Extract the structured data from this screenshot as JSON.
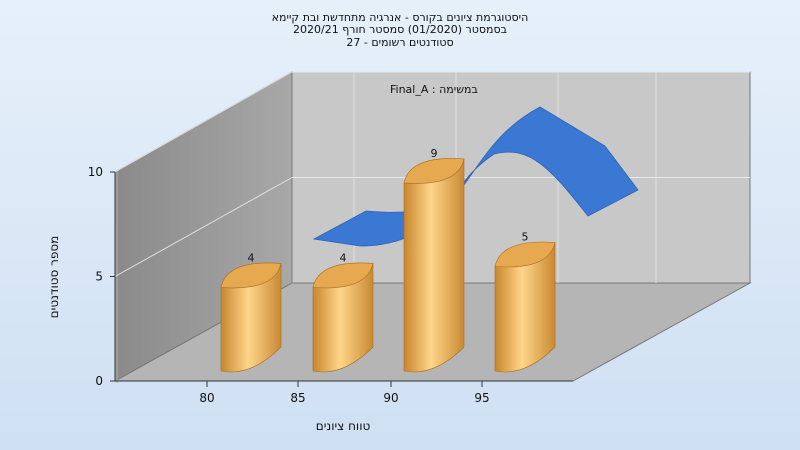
{
  "title_lines": [
    "היסטוגרמת ציונים בקורס - אנרגיה מתחדשת ובת קיימא",
    "בסמסטר  (01/2020)  סמסטר חורף  2020/21",
    "סטודנטים רשומים - 27"
  ],
  "colors": {
    "bar": "#e6a94f",
    "ribbon": "#3a78d4",
    "wall": "#9a9a9a",
    "floor": "#b8b8b8",
    "back_wall": "#c8c8c8"
  },
  "chart_data": {
    "type": "bar",
    "annotation": "Final_A : במשימה",
    "xlabel": "טווח ציונים",
    "ylabel": "מספר סטודנטים",
    "x_ticks": [
      "80",
      "85",
      "90",
      "95"
    ],
    "y_ticks": [
      "0",
      "5",
      "10"
    ],
    "ylim": [
      0,
      10
    ],
    "categories": [
      "80",
      "85",
      "90",
      "95"
    ],
    "values": [
      4,
      4,
      9,
      5
    ],
    "value_labels": [
      "4",
      "4",
      "9",
      "5"
    ],
    "grid": true,
    "trend_ribbon": true
  }
}
